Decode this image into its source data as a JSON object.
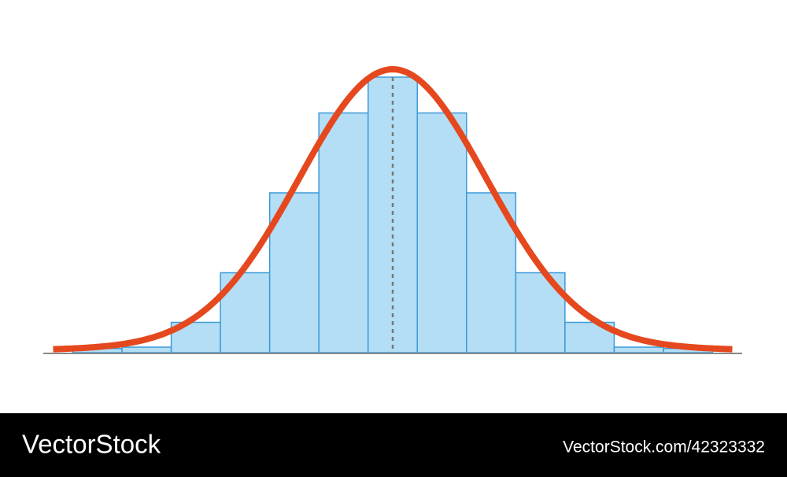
{
  "chart_data": {
    "type": "histogram",
    "bins": [
      -6.5,
      -5.5,
      -4.5,
      -3.5,
      -2.5,
      -1.5,
      -0.5,
      0.5,
      1.5,
      2.5,
      3.5,
      4.5,
      5.5,
      6.5
    ],
    "values": [
      1.5,
      2,
      11,
      29,
      58,
      87,
      100,
      87,
      58,
      29,
      11,
      2,
      1.5
    ],
    "color": "#b3def5",
    "edge_color": "#3d9ad8",
    "xlim": [
      -7.1,
      7.1
    ],
    "ylim": [
      0,
      100
    ],
    "curve": {
      "mean": 0,
      "sd": 1.9,
      "peak": 100,
      "range": [
        -6.9,
        6.9
      ],
      "color": "#e5481e"
    }
  },
  "footer": {
    "brand": "VectorStock",
    "url": "VectorStock.com/42323332"
  }
}
